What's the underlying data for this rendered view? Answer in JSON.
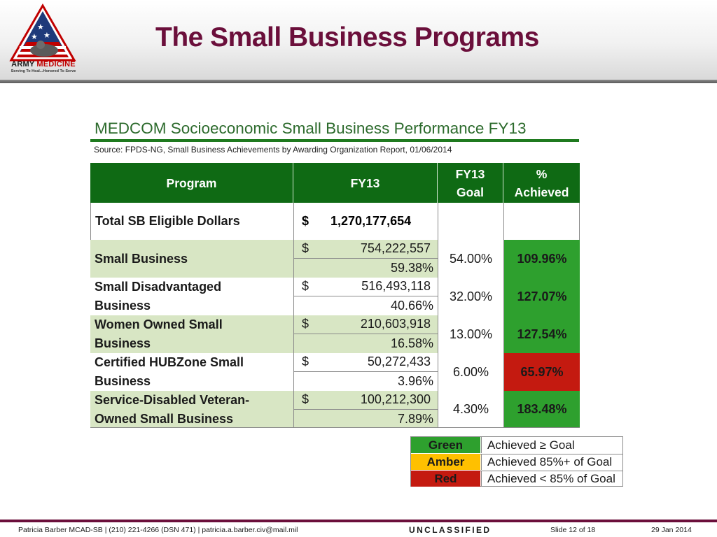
{
  "header": {
    "title": "The Small Business Programs",
    "logo_line1_a": "ARMY ",
    "logo_line1_b": "MEDICINE",
    "logo_line2": "Serving To Heal...Honored To Serve"
  },
  "report": {
    "title": "MEDCOM Socioeconomic Small Business Performance FY13",
    "source": "Source: FPDS-NG, Small Business Achievements by Awarding Organization Report, 01/06/2014"
  },
  "table": {
    "headers": {
      "program": "Program",
      "fy13": "FY13",
      "goal_line1": "FY13",
      "goal_line2": "Goal",
      "achieved_line1": "%",
      "achieved_line2": "Achieved"
    },
    "total": {
      "label": "Total SB Eligible Dollars",
      "currency": "$",
      "amount": "1,270,177,654"
    },
    "rows": [
      {
        "line1": "Small Business",
        "line2": "",
        "currency": "$",
        "amount": "754,222,557",
        "percent": "59.38%",
        "goal": "54.00%",
        "achieved": "109.96%",
        "status": "green"
      },
      {
        "line1": "Small Disadvantaged",
        "line2": "Business",
        "currency": "$",
        "amount": "516,493,118",
        "percent": "40.66%",
        "goal": "32.00%",
        "achieved": "127.07%",
        "status": "green"
      },
      {
        "line1": "Women Owned Small",
        "line2": "Business",
        "currency": "$",
        "amount": "210,603,918",
        "percent": "16.58%",
        "goal": "13.00%",
        "achieved": "127.54%",
        "status": "green"
      },
      {
        "line1": "Certified HUBZone Small",
        "line2": "Business",
        "currency": "$",
        "amount": "50,272,433",
        "percent": "3.96%",
        "goal": "6.00%",
        "achieved": "65.97%",
        "status": "red"
      },
      {
        "line1": "Service-Disabled Veteran-",
        "line2": "Owned Small Business",
        "currency": "$",
        "amount": "100,212,300",
        "percent": "7.89%",
        "goal": "4.30%",
        "achieved": "183.48%",
        "status": "green"
      }
    ]
  },
  "legend": [
    {
      "swatch": "Green",
      "label": "Achieved ≥ Goal"
    },
    {
      "swatch": "Amber",
      "label": "Achieved 85%+ of Goal"
    },
    {
      "swatch": "Red",
      "label": "Achieved < 85% of Goal"
    }
  ],
  "colors": {
    "title": "#6b0f3b",
    "header_green": "#0f6a14",
    "row_light_green": "#d8e6c4",
    "status_green": "#2ea02e",
    "status_amber": "#ffc000",
    "status_red": "#c41a10"
  },
  "footer": {
    "contact": "Patricia Barber MCAD-SB | (210) 221-4266 (DSN 471) | patricia.a.barber.civ@mail.mil",
    "classification": "UNCLASSIFIED",
    "slide": "Slide  12 of 18",
    "date": "29 Jan 2014"
  }
}
